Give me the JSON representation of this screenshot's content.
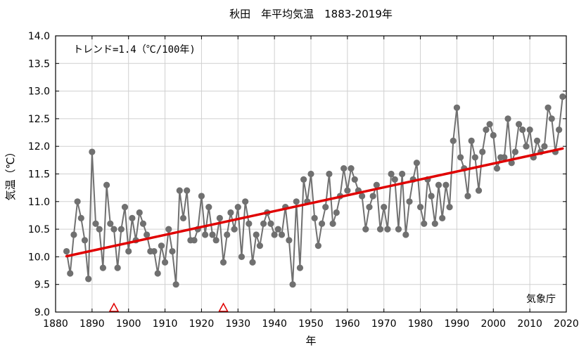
{
  "chart_data": {
    "type": "line",
    "title": "秋田　年平均気温　1883-2019年",
    "xlabel": "年",
    "ylabel": "気温（℃）",
    "xlim": [
      1880,
      2020
    ],
    "ylim": [
      9.0,
      14.0
    ],
    "x_ticks": [
      "1880",
      "1890",
      "1900",
      "1910",
      "1920",
      "1930",
      "1940",
      "1950",
      "1960",
      "1970",
      "1980",
      "1990",
      "2000",
      "2010",
      "2020"
    ],
    "y_ticks": [
      "9.0",
      "9.5",
      "10.0",
      "10.5",
      "11.0",
      "11.5",
      "12.0",
      "12.5",
      "13.0",
      "13.5",
      "14.0"
    ],
    "annotation": "トレンド=1.4（℃/100年)",
    "credit": "気象庁",
    "colors": {
      "series": "#707070",
      "trend": "#e00000",
      "marker_triangle": "#e00000"
    },
    "series": [
      {
        "name": "年平均気温",
        "x_start": 1883,
        "values": [
          10.1,
          9.7,
          10.4,
          11.0,
          10.7,
          10.3,
          9.6,
          11.9,
          10.6,
          10.5,
          9.8,
          11.3,
          10.6,
          10.5,
          9.8,
          10.5,
          10.9,
          10.1,
          10.7,
          10.3,
          10.8,
          10.6,
          10.4,
          10.1,
          10.1,
          9.7,
          10.2,
          9.9,
          10.5,
          10.1,
          9.5,
          11.2,
          10.7,
          11.2,
          10.3,
          10.3,
          10.5,
          11.1,
          10.4,
          10.9,
          10.4,
          10.3,
          10.7,
          9.9,
          10.4,
          10.8,
          10.5,
          10.9,
          10.0,
          11.0,
          10.6,
          9.9,
          10.4,
          10.2,
          10.6,
          10.8,
          10.6,
          10.4,
          10.5,
          10.4,
          10.9,
          10.3,
          9.5,
          11.0,
          9.8,
          11.4,
          11.0,
          11.5,
          10.7,
          10.2,
          10.6,
          10.9,
          11.5,
          10.6,
          10.8,
          11.1,
          11.6,
          11.2,
          11.6,
          11.4,
          11.2,
          11.1,
          10.5,
          10.9,
          11.1,
          11.3,
          10.5,
          10.9,
          10.5,
          11.5,
          11.4,
          10.5,
          11.5,
          10.4,
          11.0,
          11.4,
          11.7,
          10.9,
          10.6,
          11.4,
          11.1,
          10.6,
          11.3,
          10.7,
          11.3,
          10.9,
          12.1,
          12.7,
          11.8,
          11.6,
          11.1,
          12.1,
          11.8,
          11.2,
          11.9,
          12.3,
          12.4,
          12.2,
          11.6,
          11.8,
          11.8,
          12.5,
          11.7,
          11.9,
          12.4,
          12.3,
          12.0,
          12.3,
          11.8,
          12.1,
          11.9,
          12.0,
          12.7,
          12.5,
          11.9,
          12.3,
          12.9
        ]
      },
      {
        "name": "トレンド",
        "x": [
          1883,
          2019
        ],
        "values": [
          10.01,
          11.96
        ]
      }
    ],
    "markers": {
      "type": "triangle",
      "x": [
        1896,
        1926
      ],
      "y": 9.0
    }
  }
}
